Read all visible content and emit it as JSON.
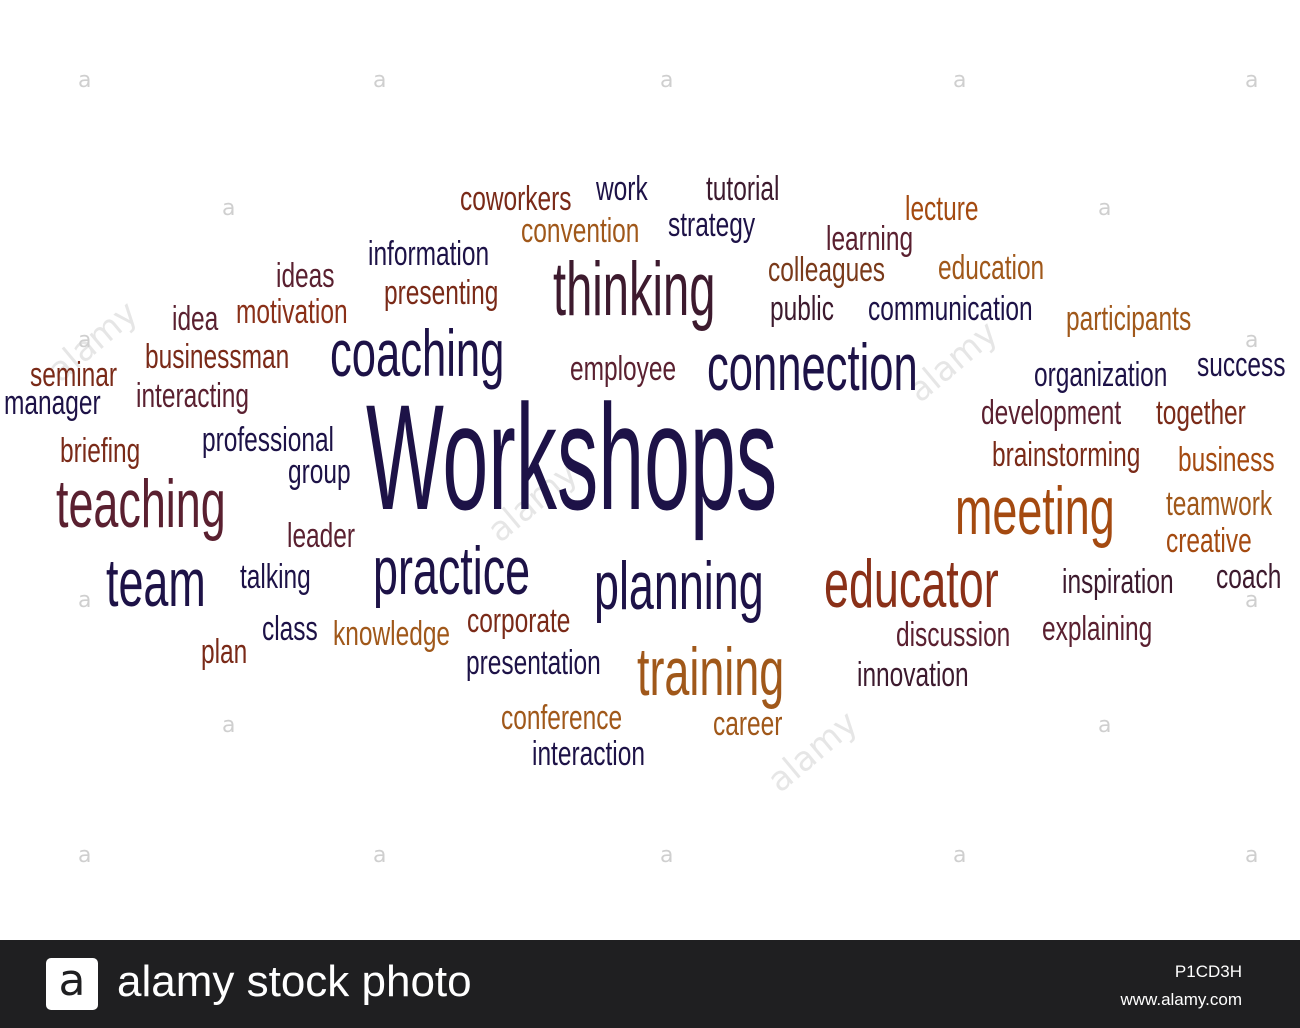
{
  "word_cloud": {
    "words": [
      {
        "text": "Workshops",
        "color": "#1d1247"
      },
      {
        "text": "coworkers",
        "color": "#7a2a18"
      },
      {
        "text": "work",
        "color": "#1d1247"
      },
      {
        "text": "tutorial",
        "color": "#3d1a2e"
      },
      {
        "text": "lecture",
        "color": "#a44a10"
      },
      {
        "text": "convention",
        "color": "#a0581a"
      },
      {
        "text": "strategy",
        "color": "#1d1247"
      },
      {
        "text": "learning",
        "color": "#5a2030"
      },
      {
        "text": "information",
        "color": "#1d1247"
      },
      {
        "text": "thinking",
        "color": "#3d1a2e"
      },
      {
        "text": "colleagues",
        "color": "#7a3a1a"
      },
      {
        "text": "education",
        "color": "#a0581a"
      },
      {
        "text": "ideas",
        "color": "#5a2030"
      },
      {
        "text": "presenting",
        "color": "#7a2a18"
      },
      {
        "text": "public",
        "color": "#3d1a2e"
      },
      {
        "text": "communication",
        "color": "#1d1247"
      },
      {
        "text": "idea",
        "color": "#5a2030"
      },
      {
        "text": "motivation",
        "color": "#8a3018"
      },
      {
        "text": "participants",
        "color": "#a0581a"
      },
      {
        "text": "coaching",
        "color": "#1d1247"
      },
      {
        "text": "connection",
        "color": "#1d1247"
      },
      {
        "text": "businessman",
        "color": "#7a2a18"
      },
      {
        "text": "employee",
        "color": "#5a2030"
      },
      {
        "text": "organization",
        "color": "#1d1247"
      },
      {
        "text": "success",
        "color": "#1d1247"
      },
      {
        "text": "seminar",
        "color": "#7a2a18"
      },
      {
        "text": "manager",
        "color": "#1d1247"
      },
      {
        "text": "interacting",
        "color": "#5a2030"
      },
      {
        "text": "development",
        "color": "#5a2030"
      },
      {
        "text": "together",
        "color": "#7a2a18"
      },
      {
        "text": "briefing",
        "color": "#7a2a18"
      },
      {
        "text": "professional",
        "color": "#1d1247"
      },
      {
        "text": "brainstorming",
        "color": "#7a2a18"
      },
      {
        "text": "business",
        "color": "#a44a10"
      },
      {
        "text": "group",
        "color": "#1d1247"
      },
      {
        "text": "teaching",
        "color": "#5a2030"
      },
      {
        "text": "meeting",
        "color": "#a44a10"
      },
      {
        "text": "teamwork",
        "color": "#a0581a"
      },
      {
        "text": "leader",
        "color": "#5a2030"
      },
      {
        "text": "creative",
        "color": "#a44a10"
      },
      {
        "text": "team",
        "color": "#1d1247"
      },
      {
        "text": "talking",
        "color": "#1d1247"
      },
      {
        "text": "practice",
        "color": "#1d1247"
      },
      {
        "text": "planning",
        "color": "#1d1247"
      },
      {
        "text": "educator",
        "color": "#8a3018"
      },
      {
        "text": "inspiration",
        "color": "#3d1a2e"
      },
      {
        "text": "coach",
        "color": "#3d1a2e"
      },
      {
        "text": "class",
        "color": "#1d1247"
      },
      {
        "text": "knowledge",
        "color": "#a0581a"
      },
      {
        "text": "corporate",
        "color": "#7a2a18"
      },
      {
        "text": "discussion",
        "color": "#5a2030"
      },
      {
        "text": "explaining",
        "color": "#5a2030"
      },
      {
        "text": "plan",
        "color": "#7a2a18"
      },
      {
        "text": "presentation",
        "color": "#1d1247"
      },
      {
        "text": "training",
        "color": "#a0581a"
      },
      {
        "text": "innovation",
        "color": "#3d1a2e"
      },
      {
        "text": "conference",
        "color": "#a0581a"
      },
      {
        "text": "career",
        "color": "#a0581a"
      },
      {
        "text": "interaction",
        "color": "#1d1247"
      }
    ]
  },
  "watermark": {
    "glyph": "a",
    "diagonal_text": "alamy"
  },
  "banner": {
    "logo_letter": "a",
    "brand_text": "alamy stock photo",
    "image_id": "P1CD3H",
    "site": "www.alamy.com",
    "background": "#1f1f21"
  }
}
